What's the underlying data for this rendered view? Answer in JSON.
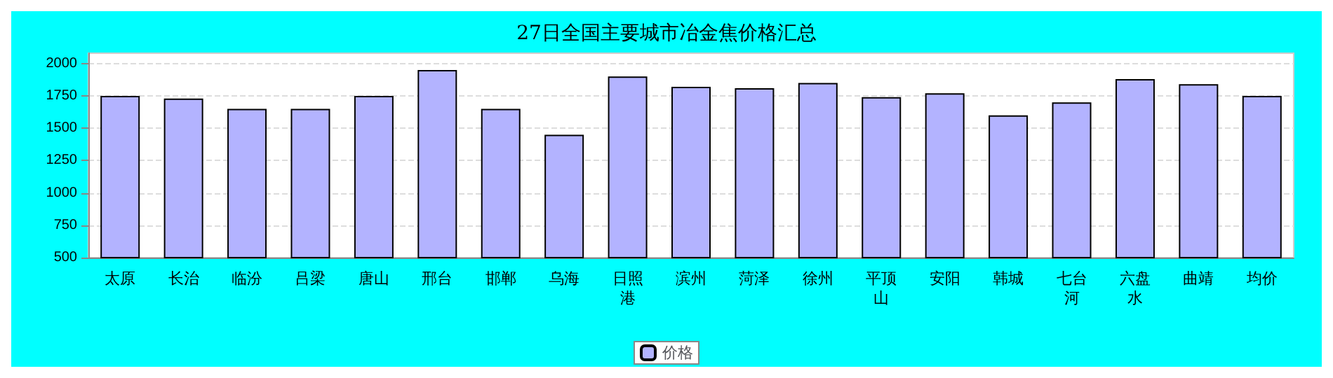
{
  "chart_data": {
    "type": "bar",
    "title": "27日全国主要城市冶金焦价格汇总",
    "categories": [
      "太原",
      "长治",
      "临汾",
      "吕梁",
      "唐山",
      "邢台",
      "邯郸",
      "乌海",
      "日照港",
      "滨州",
      "菏泽",
      "徐州",
      "平顶山",
      "安阳",
      "韩城",
      "七台河",
      "六盘水",
      "曲靖",
      "均价"
    ],
    "series": [
      {
        "name": "价格",
        "color": "#b3b3ff",
        "values": [
          1750,
          1730,
          1650,
          1650,
          1750,
          1950,
          1650,
          1450,
          1900,
          1820,
          1810,
          1850,
          1740,
          1770,
          1600,
          1700,
          1880,
          1840,
          1750
        ]
      }
    ],
    "ylim": [
      500,
      2080
    ],
    "yticks": [
      500,
      750,
      1000,
      1250,
      1500,
      1750,
      2000
    ],
    "grid": "y",
    "legend": "bottom"
  }
}
